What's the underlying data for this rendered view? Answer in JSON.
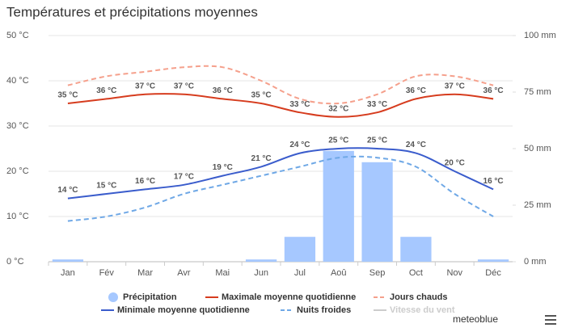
{
  "chart_data": {
    "type": "combo",
    "title": "Températures et précipitations moyennes",
    "categories": [
      "Jan",
      "Fév",
      "Mar",
      "Avr",
      "Mai",
      "Jun",
      "Jul",
      "Aoû",
      "Sep",
      "Oct",
      "Nov",
      "Déc"
    ],
    "ylim": [
      0,
      50
    ],
    "yticks": [
      {
        "value": 0,
        "label": "0 °C"
      },
      {
        "value": 10,
        "label": "10 °C"
      },
      {
        "value": 20,
        "label": "20 °C"
      },
      {
        "value": 30,
        "label": "30 °C"
      },
      {
        "value": 40,
        "label": "40 °C"
      },
      {
        "value": 50,
        "label": "50 °C"
      }
    ],
    "y2lim": [
      0,
      100
    ],
    "y2ticks": [
      {
        "value": 0,
        "label": "0 mm"
      },
      {
        "value": 25,
        "label": "25 mm"
      },
      {
        "value": 50,
        "label": "50 mm"
      },
      {
        "value": 75,
        "label": "75 mm"
      },
      {
        "value": 100,
        "label": "100 mm"
      }
    ],
    "grid": true,
    "series": [
      {
        "name": "Précipitation",
        "kind": "bar",
        "axis": "y2",
        "color": "#a6c8ff",
        "values": [
          1,
          0,
          0,
          0,
          0,
          1,
          11,
          49,
          44,
          11,
          0,
          1
        ]
      },
      {
        "name": "Maximale moyenne quotidienne",
        "kind": "line",
        "color": "#d63c1e",
        "label_color": "#9c2a10",
        "values": [
          35,
          36,
          37,
          37,
          36,
          35,
          33,
          32,
          33,
          36,
          37,
          36
        ],
        "value_labels": [
          "35 °C",
          "36 °C",
          "37 °C",
          "37 °C",
          "36 °C",
          "35 °C",
          "33 °C",
          "32 °C",
          "33 °C",
          "36 °C",
          "37 °C",
          "36 °C"
        ]
      },
      {
        "name": "Jours chauds",
        "kind": "dashed",
        "color": "#f5a08c",
        "values": [
          39,
          41,
          42,
          43,
          43,
          40,
          36,
          35,
          37,
          41,
          41,
          39
        ]
      },
      {
        "name": "Minimale moyenne quotidienne",
        "kind": "line",
        "color": "#3a5ccc",
        "label_color": "#2a4db5",
        "values": [
          14,
          15,
          16,
          17,
          19,
          21,
          24,
          25,
          25,
          24,
          20,
          16
        ],
        "value_labels": [
          "14 °C",
          "15 °C",
          "16 °C",
          "17 °C",
          "19 °C",
          "21 °C",
          "24 °C",
          "25 °C",
          "25 °C",
          "24 °C",
          "20 °C",
          "16 °C"
        ]
      },
      {
        "name": "Nuits froides",
        "kind": "dashed",
        "color": "#6fa8e6",
        "values": [
          9,
          10,
          12,
          15,
          17,
          19,
          21,
          23,
          23,
          21,
          15,
          10
        ]
      },
      {
        "name": "Vitesse du vent",
        "kind": "hidden",
        "color": "#cccccc",
        "values": [
          null,
          null,
          null,
          null,
          null,
          null,
          null,
          null,
          null,
          null,
          null,
          null
        ]
      }
    ],
    "brand": "meteoblue"
  }
}
